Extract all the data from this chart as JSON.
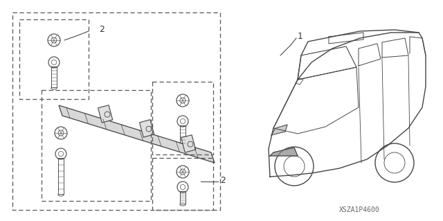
{
  "background_color": "#ffffff",
  "diagram_code": "XSZA1P4600",
  "label_1": "1",
  "label_2": "2",
  "text_color": "#333333",
  "line_color": "#444444",
  "dashed_color": "#555555",
  "figsize": [
    6.4,
    3.19
  ],
  "dpi": 100
}
